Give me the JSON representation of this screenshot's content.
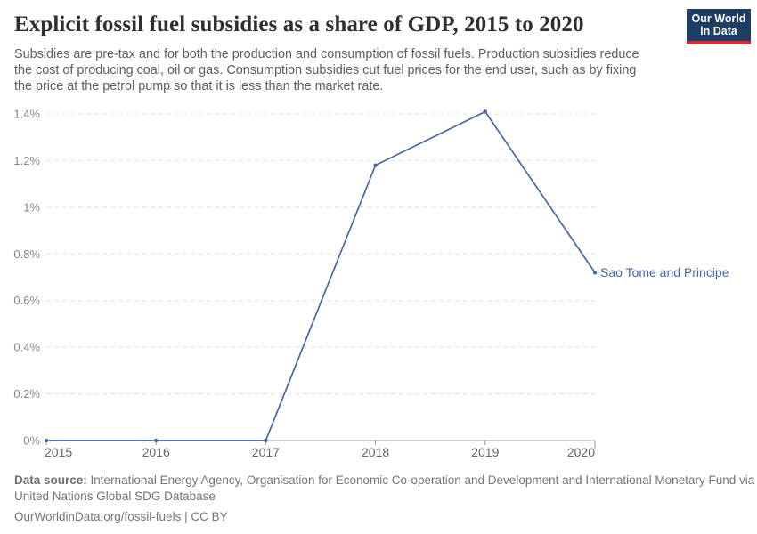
{
  "header": {
    "title": "Explicit fossil fuel subsidies as a share of GDP, 2015 to 2020",
    "subtitle_lines": [
      "Subsidies are pre-tax and for both the production and consumption of fossil fuels. Production subsidies reduce",
      "the cost of producing coal, oil or gas. Consumption subsidies cut fuel prices for the end user, such as by fixing",
      "the price at the petrol pump so that it is less than the market rate."
    ],
    "logo": {
      "line1": "Our World",
      "line2": "in Data"
    }
  },
  "footer": {
    "source_label": "Data source:",
    "source_line1_rest": "International Energy Agency, Organisation for Economic Co-operation and Development and International Monetary Fund via",
    "source_line2": "United Nations Global SDG Database",
    "attribution": "OurWorldinData.org/fossil-fuels | CC BY"
  },
  "colors": {
    "line": "#4668a8",
    "entity_label": "#4668a8",
    "grid": "#e0e0e0",
    "axis": "#999999",
    "ytick_text": "#858585",
    "xtick_text": "#636363",
    "logo_bg": "#1d3d63",
    "logo_bar": "#d12b31"
  },
  "chart_data": {
    "type": "line",
    "title": "Explicit fossil fuel subsidies as a share of GDP, 2015 to 2020",
    "xlabel": "",
    "ylabel": "",
    "x": [
      2015,
      2016,
      2017,
      2018,
      2019,
      2020
    ],
    "xtick_labels": [
      "2015",
      "2016",
      "2017",
      "2018",
      "2019",
      "2020"
    ],
    "series": [
      {
        "name": "Sao Tome and Principe",
        "values": [
          0,
          0,
          0,
          1.18,
          1.41,
          0.72
        ]
      }
    ],
    "xlim": [
      2015,
      2020
    ],
    "ylim": [
      0,
      1.4
    ],
    "yticks": [
      {
        "v": 0,
        "label": "0%"
      },
      {
        "v": 0.2,
        "label": "0.2%"
      },
      {
        "v": 0.4,
        "label": "0.4%"
      },
      {
        "v": 0.6,
        "label": "0.6%"
      },
      {
        "v": 0.8,
        "label": "0.8%"
      },
      {
        "v": 1,
        "label": "1%"
      },
      {
        "v": 1.2,
        "label": "1.2%"
      },
      {
        "v": 1.4,
        "label": "1.4%"
      }
    ],
    "grid": "horizontal-dashed",
    "legend_position": "end-of-line-label"
  }
}
